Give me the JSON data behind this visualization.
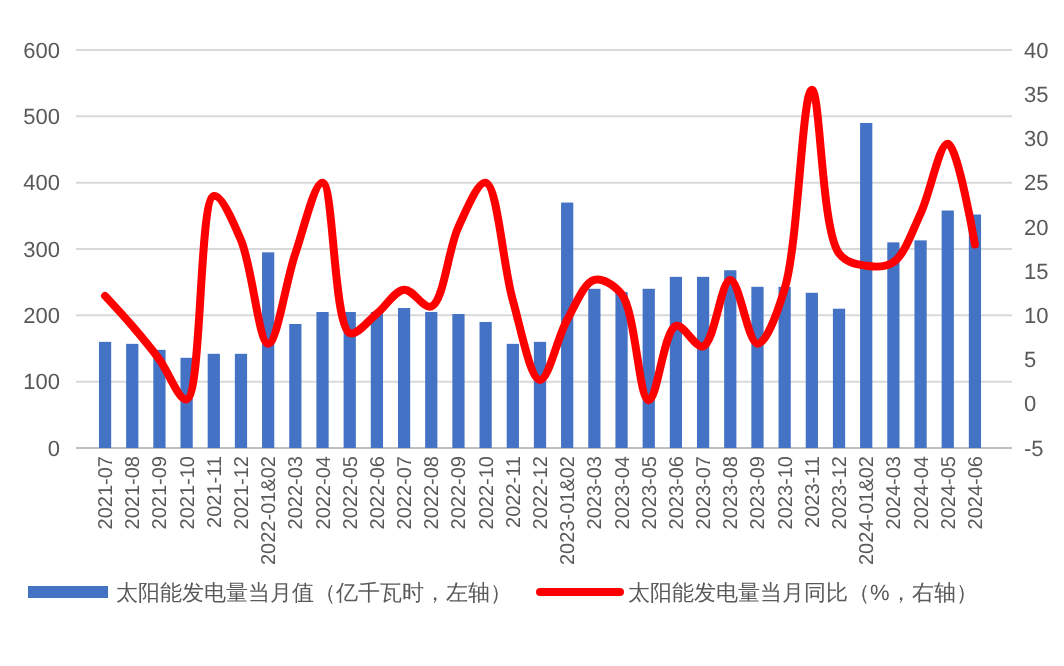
{
  "chart_data": {
    "type": "bar",
    "categories": [
      "2021-07",
      "2021-08",
      "2021-09",
      "2021-10",
      "2021-11",
      "2021-12",
      "2022-01&02",
      "2022-03",
      "2022-04",
      "2022-05",
      "2022-06",
      "2022-07",
      "2022-08",
      "2022-09",
      "2022-10",
      "2022-11",
      "2022-12",
      "2023-01&02",
      "2023-03",
      "2023-04",
      "2023-05",
      "2023-06",
      "2023-07",
      "2023-08",
      "2023-09",
      "2023-10",
      "2023-11",
      "2023-12",
      "2024-01&02",
      "2024-03",
      "2024-04",
      "2024-05",
      "2024-06"
    ],
    "series": [
      {
        "name": "太阳能发电量当月值（亿千瓦时，左轴）",
        "color": "#4472c4",
        "values": [
          160,
          157,
          148,
          136,
          142,
          142,
          295,
          187,
          205,
          205,
          205,
          211,
          205,
          202,
          190,
          157,
          160,
          370,
          240,
          235,
          240,
          258,
          258,
          268,
          243,
          243,
          234,
          210,
          490,
          310,
          313,
          358,
          352
        ]
      },
      {
        "name": "太阳能发电量当月同比（%，右轴）",
        "type": "line",
        "axis": "y2",
        "color": "#ff0000",
        "values": [
          12.2,
          8.8,
          5,
          0.5,
          23.5,
          18.5,
          6.8,
          17,
          25,
          8,
          10.2,
          12.9,
          11,
          20,
          25,
          11.7,
          2.7,
          9.5,
          14,
          12.4,
          0.4,
          8.8,
          6.5,
          14,
          6.8,
          13,
          35.5,
          17,
          15.6,
          16,
          21.5,
          29.4,
          18
        ]
      }
    ],
    "ylim": [
      0,
      600
    ],
    "yticks": [
      0,
      100,
      200,
      300,
      400,
      500,
      600
    ],
    "y2lim": [
      -5,
      40
    ],
    "y2ticks": [
      -5,
      0,
      5,
      10,
      15,
      20,
      25,
      30,
      35,
      40
    ],
    "grid": "y",
    "legend": "bottom",
    "line_style": "solid",
    "marker": "none"
  }
}
